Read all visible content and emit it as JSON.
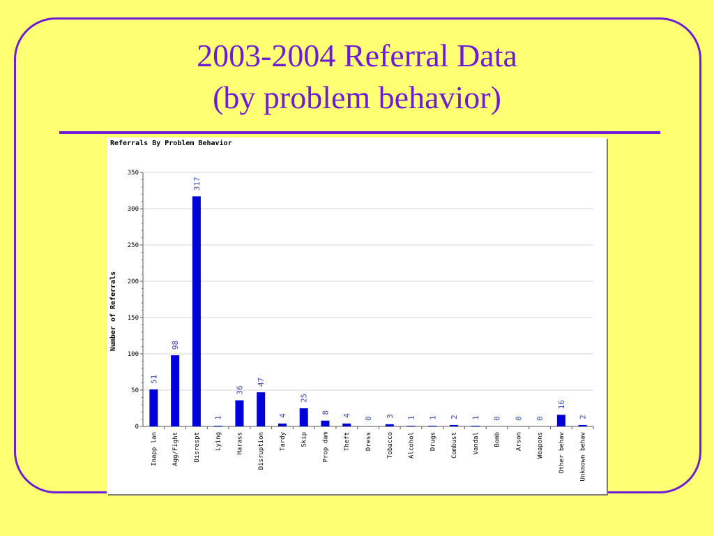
{
  "slide": {
    "title_line1": "2003-2004 Referral Data",
    "title_line2": "(by problem behavior)",
    "accent_color": "#6f1cd6",
    "background_color": "#ffff73"
  },
  "chart_data": {
    "type": "bar",
    "title": "Referrals By Problem Behavior",
    "xlabel": "",
    "ylabel": "Number of Referrals",
    "ylim": [
      0,
      350
    ],
    "yticks": [
      0,
      50,
      100,
      150,
      200,
      250,
      300,
      350
    ],
    "grid": true,
    "bar_color": "#0000d8",
    "label_color": "#3b4cc0",
    "categories": [
      "Inapp lan",
      "Agg/Fight",
      "Disrespt",
      "Lying",
      "Harass",
      "Disruption",
      "Tardy",
      "Skip",
      "Prop dam",
      "Theft",
      "Dress",
      "Tobacco",
      "Alcohol",
      "Drugs",
      "Combust",
      "Vandal",
      "Bomb",
      "Arson",
      "Weapons",
      "Other behav",
      "Unknown behav"
    ],
    "values": [
      51,
      98,
      317,
      1,
      36,
      47,
      4,
      25,
      8,
      4,
      0,
      3,
      1,
      1,
      2,
      1,
      0,
      0,
      0,
      16,
      2
    ]
  }
}
